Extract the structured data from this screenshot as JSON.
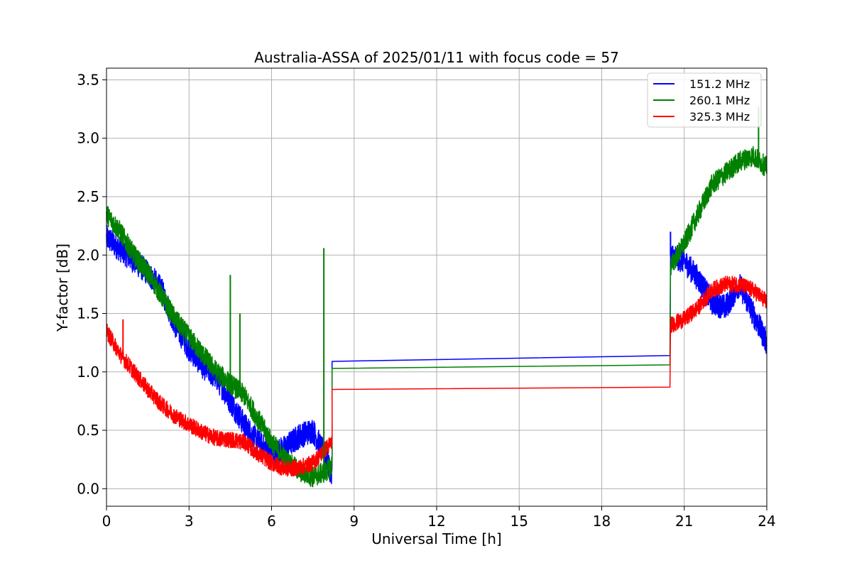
{
  "chart_data": {
    "type": "line",
    "title": "Australia-ASSA of 2025/01/11 with focus code = 57",
    "xlabel": "Universal Time [h]",
    "ylabel": "Y-factor [dB]",
    "xlim": [
      0,
      24
    ],
    "ylim": [
      -0.15,
      3.6
    ],
    "xticks": [
      0,
      3,
      6,
      9,
      12,
      15,
      18,
      21,
      24
    ],
    "xtick_labels": [
      "0",
      "3",
      "6",
      "9",
      "12",
      "15",
      "18",
      "21",
      "24"
    ],
    "yticks": [
      0.0,
      0.5,
      1.0,
      1.5,
      2.0,
      2.5,
      3.0,
      3.5
    ],
    "ytick_labels": [
      "0.0",
      "0.5",
      "1.0",
      "1.5",
      "2.0",
      "2.5",
      "3.0",
      "3.5"
    ],
    "grid": true,
    "legend_position": "top-right",
    "series": [
      {
        "name": "151.2 MHz",
        "color": "#0000ff",
        "x": [
          0.0,
          0.5,
          1.0,
          1.5,
          2.0,
          2.5,
          3.0,
          3.5,
          4.0,
          4.5,
          5.0,
          5.5,
          6.0,
          6.5,
          7.0,
          7.5,
          8.0,
          8.2,
          8.21,
          20.48,
          20.5,
          21.0,
          21.5,
          22.0,
          22.5,
          23.0,
          23.5,
          24.0
        ],
        "y": [
          2.15,
          2.05,
          1.95,
          1.85,
          1.7,
          1.4,
          1.2,
          1.05,
          0.95,
          0.75,
          0.55,
          0.4,
          0.3,
          0.35,
          0.45,
          0.5,
          0.25,
          0.1,
          1.09,
          1.14,
          2.0,
          1.95,
          1.8,
          1.6,
          1.55,
          1.75,
          1.5,
          1.25
        ]
      },
      {
        "name": "260.1 MHz",
        "color": "#008000",
        "x": [
          0.0,
          0.5,
          1.0,
          1.5,
          2.0,
          2.5,
          3.0,
          3.5,
          4.0,
          4.5,
          5.0,
          5.5,
          6.0,
          6.5,
          7.0,
          7.5,
          8.0,
          8.2,
          8.21,
          20.48,
          20.5,
          21.0,
          21.5,
          22.0,
          22.5,
          23.0,
          23.5,
          24.0
        ],
        "y": [
          2.35,
          2.2,
          2.0,
          1.85,
          1.65,
          1.45,
          1.3,
          1.15,
          1.0,
          0.9,
          0.8,
          0.6,
          0.4,
          0.25,
          0.15,
          0.1,
          0.15,
          0.2,
          1.03,
          1.06,
          1.9,
          2.1,
          2.35,
          2.6,
          2.7,
          2.8,
          2.85,
          2.75
        ]
      },
      {
        "name": "325.3 MHz",
        "color": "#ff0000",
        "x": [
          0.0,
          0.5,
          1.0,
          1.5,
          2.0,
          2.5,
          3.0,
          3.5,
          4.0,
          4.5,
          5.0,
          5.5,
          6.0,
          6.5,
          7.0,
          7.5,
          8.0,
          8.2,
          8.21,
          20.48,
          20.5,
          21.0,
          21.5,
          22.0,
          22.5,
          23.0,
          23.5,
          24.0
        ],
        "y": [
          1.35,
          1.15,
          1.0,
          0.85,
          0.72,
          0.62,
          0.55,
          0.48,
          0.43,
          0.42,
          0.4,
          0.3,
          0.22,
          0.17,
          0.18,
          0.22,
          0.35,
          0.4,
          0.85,
          0.87,
          1.4,
          1.45,
          1.55,
          1.7,
          1.75,
          1.75,
          1.7,
          1.6
        ]
      }
    ],
    "spikes": [
      {
        "series": 1,
        "x": 4.5,
        "y": 1.83
      },
      {
        "series": 1,
        "x": 4.85,
        "y": 1.5
      },
      {
        "series": 1,
        "x": 7.9,
        "y": 2.06
      },
      {
        "series": 1,
        "x": 23.7,
        "y": 3.27
      },
      {
        "series": 0,
        "x": 20.5,
        "y": 2.2
      },
      {
        "series": 2,
        "x": 0.6,
        "y": 1.45
      }
    ]
  }
}
